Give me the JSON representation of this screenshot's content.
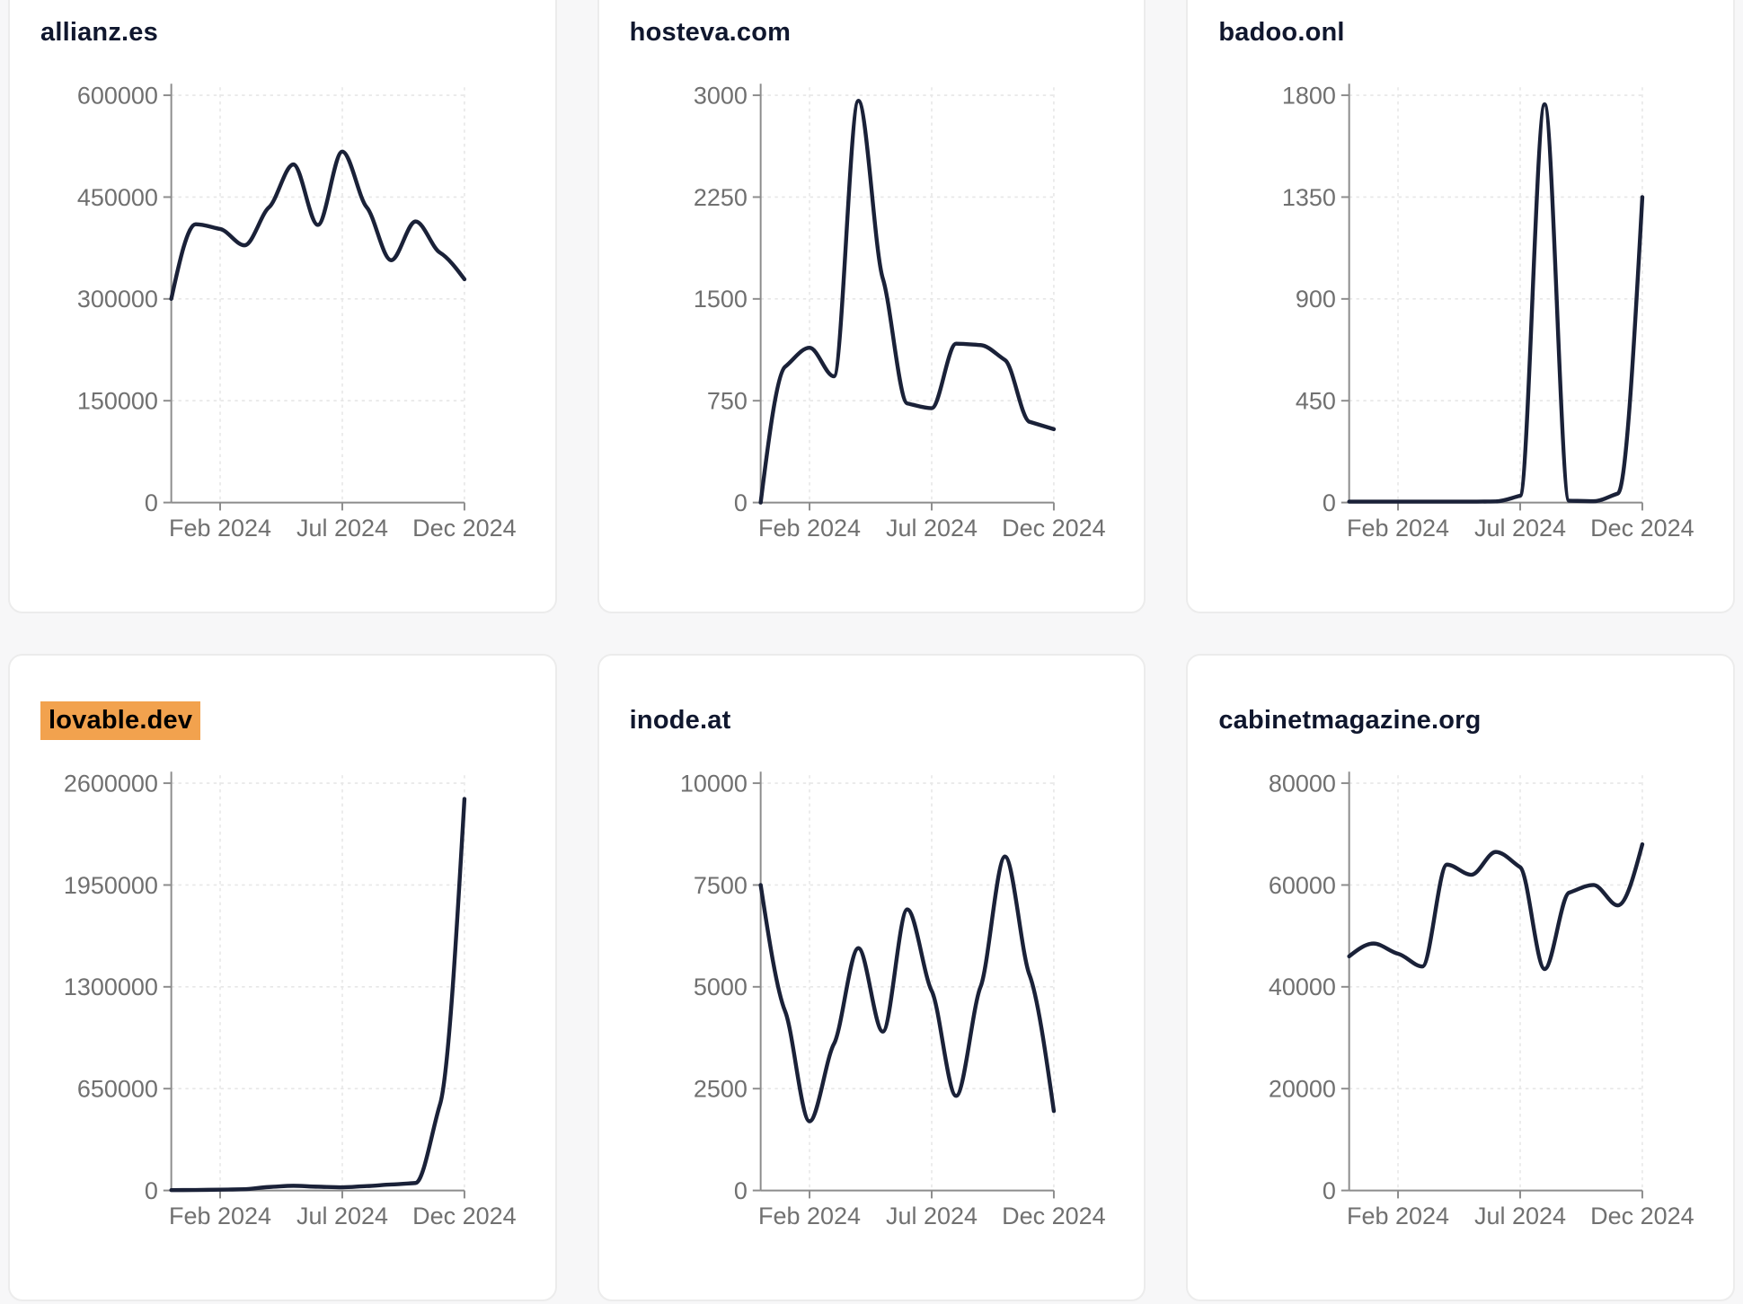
{
  "page": {
    "background_color": "#f7f7f8",
    "card_background": "#ffffff",
    "card_border_color": "#ececec"
  },
  "theme": {
    "line_color": "#1a2138",
    "title_color": "#10172e",
    "tick_label_color": "#707070",
    "axis_color": "#8c8c8c",
    "grid_color": "#e7e7e7",
    "highlight_background": "#f2a24e",
    "highlight_text_color": "#000000"
  },
  "chart_data": [
    {
      "type": "line",
      "title": "allianz.es",
      "highlighted": false,
      "x": [
        "2023-12",
        "2024-01",
        "2024-02",
        "2024-03",
        "2024-04",
        "2024-05",
        "2024-06",
        "2024-07",
        "2024-08",
        "2024-09",
        "2024-10",
        "2024-11",
        "2024-12"
      ],
      "values": [
        300000,
        410000,
        403000,
        379000,
        435000,
        498000,
        409000,
        517000,
        435000,
        357000,
        414000,
        368000,
        329000
      ],
      "ylim": [
        0,
        600000
      ],
      "y_ticks": [
        0,
        150000,
        300000,
        450000,
        600000
      ],
      "x_tick_labels": [
        "Feb 2024",
        "Jul 2024",
        "Dec 2024"
      ],
      "x_tick_indices": [
        2,
        7,
        12
      ],
      "grid": "dashed",
      "legend": "none"
    },
    {
      "type": "line",
      "title": "hosteva.com",
      "highlighted": false,
      "x": [
        "2023-12",
        "2024-01",
        "2024-02",
        "2024-03",
        "2024-04",
        "2024-05",
        "2024-06",
        "2024-07",
        "2024-08",
        "2024-09",
        "2024-10",
        "2024-11",
        "2024-12"
      ],
      "values": [
        0,
        1000,
        1140,
        930,
        2960,
        1650,
        730,
        695,
        1170,
        1160,
        1050,
        595,
        540
      ],
      "ylim": [
        0,
        3000
      ],
      "y_ticks": [
        0,
        750,
        1500,
        2250,
        3000
      ],
      "x_tick_labels": [
        "Feb 2024",
        "Jul 2024",
        "Dec 2024"
      ],
      "x_tick_indices": [
        2,
        7,
        12
      ],
      "grid": "dashed",
      "legend": "none"
    },
    {
      "type": "line",
      "title": "badoo.onl",
      "highlighted": false,
      "x": [
        "2023-12",
        "2024-01",
        "2024-02",
        "2024-03",
        "2024-04",
        "2024-05",
        "2024-06",
        "2024-07",
        "2024-08",
        "2024-09",
        "2024-10",
        "2024-11",
        "2024-12"
      ],
      "values": [
        4,
        4,
        4,
        4,
        4,
        4,
        5,
        30,
        1760,
        8,
        6,
        40,
        1350
      ],
      "ylim": [
        0,
        1800
      ],
      "y_ticks": [
        0,
        450,
        900,
        1350,
        1800
      ],
      "x_tick_labels": [
        "Feb 2024",
        "Jul 2024",
        "Dec 2024"
      ],
      "x_tick_indices": [
        2,
        7,
        12
      ],
      "grid": "dashed",
      "legend": "none"
    },
    {
      "type": "line",
      "title": "lovable.dev",
      "highlighted": true,
      "x": [
        "2023-12",
        "2024-01",
        "2024-02",
        "2024-03",
        "2024-04",
        "2024-05",
        "2024-06",
        "2024-07",
        "2024-08",
        "2024-09",
        "2024-10",
        "2024-11",
        "2024-12"
      ],
      "values": [
        2000,
        3000,
        5000,
        8000,
        22000,
        30000,
        24000,
        20000,
        28000,
        38000,
        48000,
        550000,
        2500000
      ],
      "ylim": [
        0,
        2600000
      ],
      "y_ticks": [
        0,
        650000,
        1300000,
        1950000,
        2600000
      ],
      "x_tick_labels": [
        "Feb 2024",
        "Jul 2024",
        "Dec 2024"
      ],
      "x_tick_indices": [
        2,
        7,
        12
      ],
      "grid": "dashed",
      "legend": "none"
    },
    {
      "type": "line",
      "title": "inode.at",
      "highlighted": false,
      "x": [
        "2023-12",
        "2024-01",
        "2024-02",
        "2024-03",
        "2024-04",
        "2024-05",
        "2024-06",
        "2024-07",
        "2024-08",
        "2024-09",
        "2024-10",
        "2024-11",
        "2024-12"
      ],
      "values": [
        7500,
        4400,
        1700,
        3600,
        5950,
        3900,
        6900,
        4900,
        2320,
        5000,
        8200,
        5300,
        1950
      ],
      "ylim": [
        0,
        10000
      ],
      "y_ticks": [
        0,
        2500,
        5000,
        7500,
        10000
      ],
      "x_tick_labels": [
        "Feb 2024",
        "Jul 2024",
        "Dec 2024"
      ],
      "x_tick_indices": [
        2,
        7,
        12
      ],
      "grid": "dashed",
      "legend": "none"
    },
    {
      "type": "line",
      "title": "cabinetmagazine.org",
      "highlighted": false,
      "x": [
        "2023-12",
        "2024-01",
        "2024-02",
        "2024-03",
        "2024-04",
        "2024-05",
        "2024-06",
        "2024-07",
        "2024-08",
        "2024-09",
        "2024-10",
        "2024-11",
        "2024-12"
      ],
      "values": [
        46000,
        48500,
        46500,
        44000,
        64000,
        62000,
        66500,
        63500,
        43500,
        58500,
        60000,
        56000,
        68000
      ],
      "ylim": [
        0,
        80000
      ],
      "y_ticks": [
        0,
        20000,
        40000,
        60000,
        80000
      ],
      "x_tick_labels": [
        "Feb 2024",
        "Jul 2024",
        "Dec 2024"
      ],
      "x_tick_indices": [
        2,
        7,
        12
      ],
      "grid": "dashed",
      "legend": "none"
    }
  ]
}
